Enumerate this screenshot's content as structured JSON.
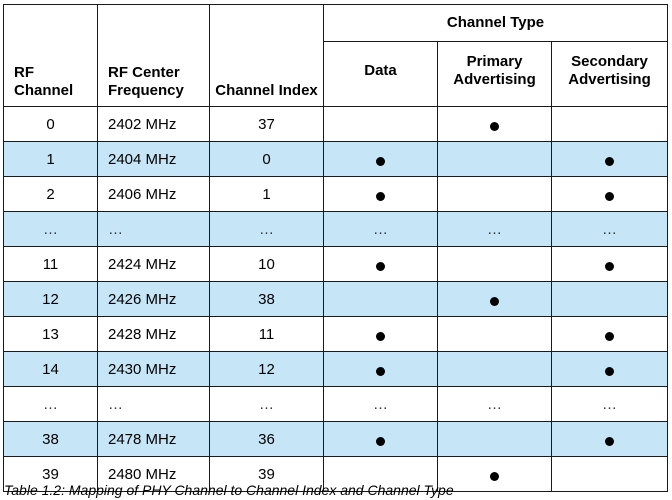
{
  "table": {
    "header": {
      "group_label": "Channel Type",
      "rf_channel": "RF Channel",
      "rf_center_frequency": "RF Center Frequency",
      "channel_index": "Channel Index",
      "data": "Data",
      "primary_advertising": "Primary Advertising",
      "secondary_advertising": "Secondary Advertising"
    },
    "rows": [
      {
        "rf": "0",
        "freq": "2402 MHz",
        "idx": "37",
        "data": false,
        "primary": true,
        "secondary": false,
        "ellipsis": false
      },
      {
        "rf": "1",
        "freq": "2404 MHz",
        "idx": "0",
        "data": true,
        "primary": false,
        "secondary": true,
        "ellipsis": false
      },
      {
        "rf": "2",
        "freq": "2406 MHz",
        "idx": "1",
        "data": true,
        "primary": false,
        "secondary": true,
        "ellipsis": false
      },
      {
        "rf": "…",
        "freq": "…",
        "idx": "…",
        "data": "…",
        "primary": "…",
        "secondary": "…",
        "ellipsis": true
      },
      {
        "rf": "11",
        "freq": "2424 MHz",
        "idx": "10",
        "data": true,
        "primary": false,
        "secondary": true,
        "ellipsis": false
      },
      {
        "rf": "12",
        "freq": "2426 MHz",
        "idx": "38",
        "data": false,
        "primary": true,
        "secondary": false,
        "ellipsis": false
      },
      {
        "rf": "13",
        "freq": "2428 MHz",
        "idx": "11",
        "data": true,
        "primary": false,
        "secondary": true,
        "ellipsis": false
      },
      {
        "rf": "14",
        "freq": "2430 MHz",
        "idx": "12",
        "data": true,
        "primary": false,
        "secondary": true,
        "ellipsis": false
      },
      {
        "rf": "…",
        "freq": "…",
        "idx": "…",
        "data": "…",
        "primary": "…",
        "secondary": "…",
        "ellipsis": true
      },
      {
        "rf": "38",
        "freq": "2478 MHz",
        "idx": "36",
        "data": true,
        "primary": false,
        "secondary": true,
        "ellipsis": false
      },
      {
        "rf": "39",
        "freq": "2480 MHz",
        "idx": "39",
        "data": false,
        "primary": true,
        "secondary": false,
        "ellipsis": false
      }
    ]
  },
  "caption": "Table 1.2:  Mapping of PHY Channel to Channel Index and Channel Type"
}
